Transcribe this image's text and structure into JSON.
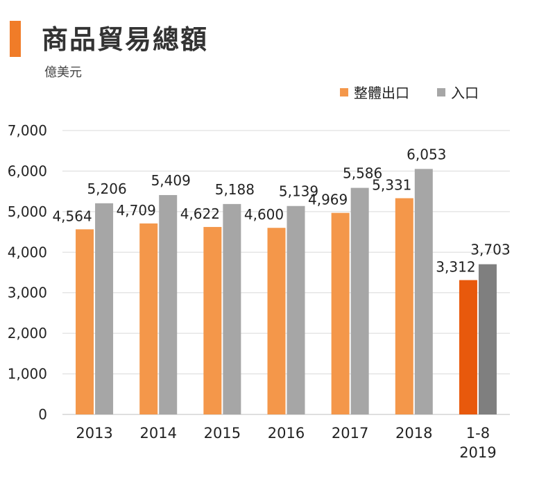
{
  "header": {
    "title": "商品貿易總額",
    "subtitle": "億美元"
  },
  "colors": {
    "accent": "#F07C28",
    "export": "#F4974A",
    "import": "#A6A6A6",
    "export_highlight": "#E8590C",
    "import_highlight": "#7F7F7F",
    "grid": "#D9D9D9"
  },
  "chart_data": {
    "type": "bar",
    "title": "商品貿易總額",
    "subtitle": "億美元",
    "categories": [
      "2013",
      "2014",
      "2015",
      "2016",
      "2017",
      "2018",
      "1-8\n2019"
    ],
    "series": [
      {
        "name": "整體出口",
        "values": [
          4564,
          4709,
          4622,
          4600,
          4969,
          5331,
          3312
        ]
      },
      {
        "name": "入口",
        "values": [
          5206,
          5409,
          5188,
          5139,
          5586,
          6053,
          3703
        ]
      }
    ],
    "data_labels": [
      [
        "4,564",
        "4,709",
        "4,622",
        "4,600",
        "4,969",
        "5,331",
        "3,312"
      ],
      [
        "5,206",
        "5,409",
        "5,188",
        "5,139",
        "5,586",
        "6,053",
        "3,703"
      ]
    ],
    "yticks": [
      "0",
      "1,000",
      "2,000",
      "3,000",
      "4,000",
      "5,000",
      "6,000",
      "7,000"
    ],
    "ylim": [
      0,
      7000
    ],
    "grid": true,
    "legend_position": "top-right",
    "highlight_last_category": true
  }
}
